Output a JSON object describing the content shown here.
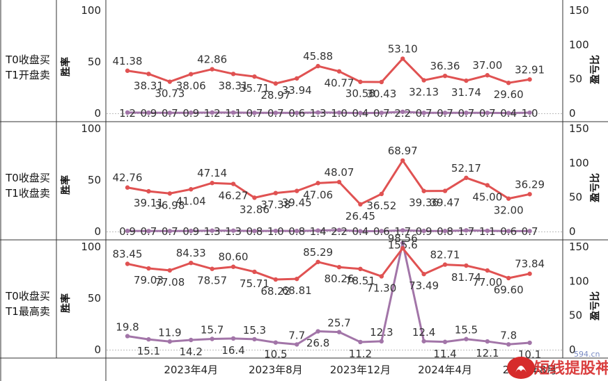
{
  "chart_data": {
    "type": "line",
    "series_colors": {
      "win_rate": "#e05252",
      "profit_ratio": "#a275a8"
    },
    "x": [
      "2023-01",
      "2023-02",
      "2023-03",
      "2023-04",
      "2023-05",
      "2023-06",
      "2023-07",
      "2023-08",
      "2023-09",
      "2023-10",
      "2023-11",
      "2023-12",
      "2024-01",
      "2024-02",
      "2024-03",
      "2024-04",
      "2024-05",
      "2024-06",
      "2024-07",
      "2024-08"
    ],
    "x_tick_labels": [
      "2023年4月",
      "2023年8月",
      "2023年12月",
      "2024年4月",
      "2024年8月"
    ],
    "panels": [
      {
        "row_label": [
          "T0收盘买",
          "T1开盘卖"
        ],
        "ylabel_left": "胜率",
        "ylabel_right": "盈亏比",
        "left_ticks": [
          "100",
          "50",
          "0"
        ],
        "right_ticks": [
          "150",
          "100",
          "50",
          "0"
        ],
        "ylim_left": [
          0,
          100
        ],
        "ylim_right": [
          0,
          150
        ],
        "win_rate": [
          41.38,
          38.31,
          30.73,
          38.06,
          42.86,
          38.31,
          35.71,
          28.97,
          33.94,
          45.88,
          40.77,
          30.58,
          30.43,
          53.1,
          32.13,
          36.36,
          31.74,
          37.0,
          29.6,
          32.91
        ],
        "profit_ratio": [
          1.2,
          0.9,
          0.7,
          0.9,
          1.2,
          1.1,
          0.7,
          0.7,
          0.6,
          1.3,
          1.0,
          0.4,
          0.7,
          2.2,
          0.7,
          0.7,
          0.7,
          0.7,
          0.4,
          1.0
        ]
      },
      {
        "row_label": [
          "T0收盘买",
          "T1收盘卖"
        ],
        "ylabel_left": "胜率",
        "ylabel_right": "盈亏比",
        "left_ticks": [
          "100",
          "50",
          "0"
        ],
        "right_ticks": [
          "150",
          "100",
          "50",
          "0"
        ],
        "ylim_left": [
          0,
          100
        ],
        "ylim_right": [
          0,
          150
        ],
        "win_rate": [
          42.76,
          39.11,
          36.98,
          41.04,
          47.14,
          46.27,
          32.86,
          37.38,
          39.45,
          47.06,
          48.07,
          26.45,
          36.52,
          68.97,
          39.36,
          39.47,
          52.17,
          45.0,
          32.0,
          36.29
        ],
        "profit_ratio": [
          0.9,
          0.7,
          0.7,
          0.9,
          1.3,
          1.3,
          0.8,
          1.0,
          0.8,
          1.4,
          2.2,
          0.4,
          0.6,
          1.7,
          0.9,
          0.8,
          1.7,
          1.1,
          0.6,
          0.7
        ]
      },
      {
        "row_label": [
          "T0收盘买",
          "T1最高卖"
        ],
        "ylabel_left": "胜率",
        "ylabel_right": "盈亏比",
        "left_ticks": [
          "100",
          "50",
          "0"
        ],
        "right_ticks": [
          "150",
          "100",
          "50",
          "0"
        ],
        "ylim_left": [
          0,
          100
        ],
        "ylim_right": [
          0,
          150
        ],
        "win_rate": [
          83.45,
          79.03,
          77.08,
          84.33,
          78.57,
          80.6,
          75.71,
          68.22,
          68.81,
          85.29,
          80.26,
          78.51,
          71.3,
          98.56,
          73.49,
          82.71,
          81.74,
          77.0,
          69.6,
          73.84
        ],
        "profit_ratio": [
          19.8,
          15.1,
          11.9,
          14.2,
          15.7,
          16.4,
          15.3,
          10.5,
          7.7,
          26.8,
          25.7,
          11.2,
          12.3,
          155.6,
          12.4,
          11.4,
          15.5,
          12.1,
          7.8,
          10.1
        ]
      }
    ]
  },
  "watermark": {
    "site": "594.cn",
    "brand": "短线提股神"
  }
}
